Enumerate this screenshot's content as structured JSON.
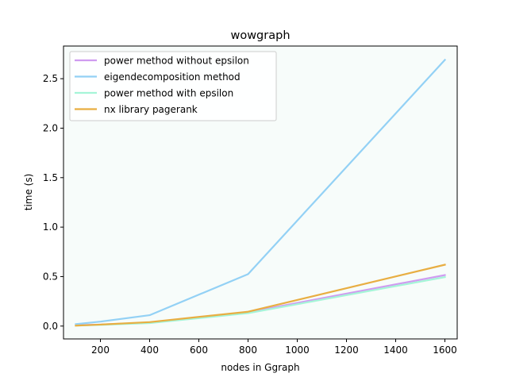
{
  "chart_data": {
    "type": "line",
    "title": "wowgraph",
    "xlabel": "nodes in Ggraph",
    "ylabel": "time (s)",
    "x": [
      100,
      200,
      400,
      800,
      1600
    ],
    "xlim": [
      50,
      1650
    ],
    "ylim": [
      -0.13,
      2.83
    ],
    "xticks": [
      200,
      400,
      600,
      800,
      1000,
      1200,
      1400,
      1600
    ],
    "yticks": [
      0.0,
      0.5,
      1.0,
      1.5,
      2.0,
      2.5
    ],
    "xtick_labels": [
      "200",
      "400",
      "600",
      "800",
      "1000",
      "1200",
      "1400",
      "1600"
    ],
    "ytick_labels": [
      "0.0",
      "0.5",
      "1.0",
      "1.5",
      "2.0",
      "2.5"
    ],
    "grid": false,
    "legend_position": "top-left",
    "plot_background": "#f7fcfa",
    "series": [
      {
        "name": "power method without epsilon",
        "color": "#cf9cf0",
        "values": [
          0.01,
          0.015,
          0.035,
          0.14,
          0.515
        ]
      },
      {
        "name": "eigendecomposition method",
        "color": "#93d1f5",
        "values": [
          0.02,
          0.045,
          0.11,
          0.525,
          2.69
        ]
      },
      {
        "name": "power method with epsilon",
        "color": "#a6f5d8",
        "values": [
          0.005,
          0.012,
          0.03,
          0.13,
          0.495
        ]
      },
      {
        "name": "nx library pagerank",
        "color": "#e8ae42",
        "values": [
          0.005,
          0.015,
          0.04,
          0.145,
          0.62
        ]
      }
    ]
  }
}
